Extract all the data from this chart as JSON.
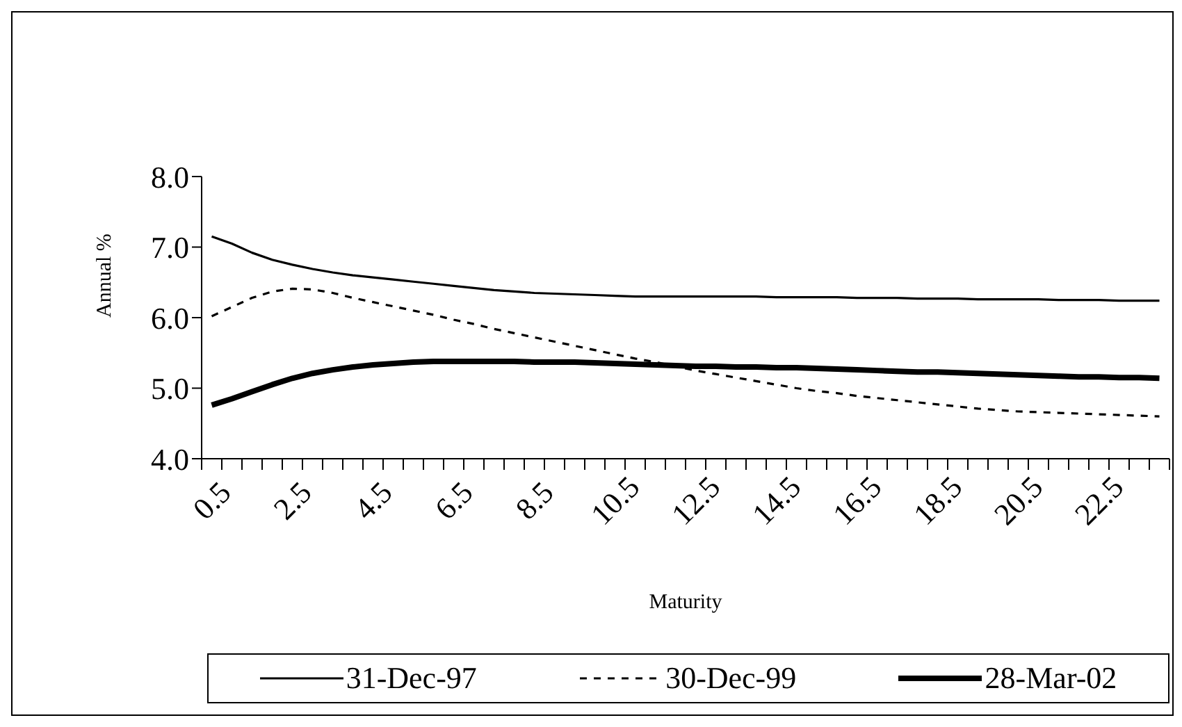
{
  "chart_data": {
    "type": "line",
    "xlabel": "Maturity",
    "ylabel": "Annual %",
    "categories": [
      "0.5",
      null,
      null,
      null,
      "2.5",
      null,
      null,
      null,
      "4.5",
      null,
      null,
      null,
      "6.5",
      null,
      null,
      null,
      "8.5",
      null,
      null,
      null,
      "10.5",
      null,
      null,
      null,
      "12.5",
      null,
      null,
      null,
      "14.5",
      null,
      null,
      null,
      "16.5",
      null,
      null,
      null,
      "18.5",
      null,
      null,
      null,
      "20.5",
      null,
      null,
      null,
      "22.5",
      null,
      null,
      null
    ],
    "series": [
      {
        "name": "31-Dec-97",
        "color": "#000000",
        "line_style": "solid",
        "values": [
          7.15,
          7.05,
          6.92,
          6.82,
          6.75,
          6.69,
          6.64,
          6.6,
          6.57,
          6.54,
          6.51,
          6.48,
          6.45,
          6.42,
          6.39,
          6.37,
          6.35,
          6.34,
          6.33,
          6.32,
          6.31,
          6.3,
          6.3,
          6.3,
          6.3,
          6.3,
          6.3,
          6.3,
          6.29,
          6.29,
          6.29,
          6.29,
          6.28,
          6.28,
          6.28,
          6.27,
          6.27,
          6.27,
          6.26,
          6.26,
          6.26,
          6.26,
          6.25,
          6.25,
          6.25,
          6.24,
          6.24,
          6.24
        ]
      },
      {
        "name": "30-Dec-99",
        "color": "#000000",
        "line_style": "dashed",
        "values": [
          6.02,
          6.15,
          6.28,
          6.37,
          6.41,
          6.4,
          6.35,
          6.28,
          6.22,
          6.16,
          6.1,
          6.04,
          5.97,
          5.91,
          5.84,
          5.78,
          5.72,
          5.66,
          5.6,
          5.54,
          5.48,
          5.42,
          5.37,
          5.31,
          5.25,
          5.2,
          5.15,
          5.1,
          5.05,
          5.0,
          4.96,
          4.93,
          4.89,
          4.86,
          4.83,
          4.8,
          4.77,
          4.74,
          4.71,
          4.69,
          4.67,
          4.66,
          4.65,
          4.64,
          4.63,
          4.62,
          4.61,
          4.6
        ]
      },
      {
        "name": "28-Mar-02",
        "color": "#000000",
        "line_style": "solid",
        "values": [
          4.76,
          4.85,
          4.95,
          5.05,
          5.14,
          5.21,
          5.26,
          5.3,
          5.33,
          5.35,
          5.37,
          5.38,
          5.38,
          5.38,
          5.38,
          5.38,
          5.37,
          5.37,
          5.37,
          5.36,
          5.35,
          5.34,
          5.33,
          5.32,
          5.31,
          5.31,
          5.3,
          5.3,
          5.29,
          5.29,
          5.28,
          5.27,
          5.26,
          5.25,
          5.24,
          5.23,
          5.23,
          5.22,
          5.21,
          5.2,
          5.19,
          5.18,
          5.17,
          5.16,
          5.16,
          5.15,
          5.15,
          5.14
        ]
      }
    ],
    "ylim": [
      4,
      8
    ],
    "yticks": [
      {
        "value": 4,
        "label": "4.0"
      },
      {
        "value": 5,
        "label": "5.0"
      },
      {
        "value": 6,
        "label": "6.0"
      },
      {
        "value": 7,
        "label": "7.0"
      },
      {
        "value": 8,
        "label": "8.0"
      }
    ],
    "grid": false,
    "legend": "bottom",
    "marker": "none"
  }
}
